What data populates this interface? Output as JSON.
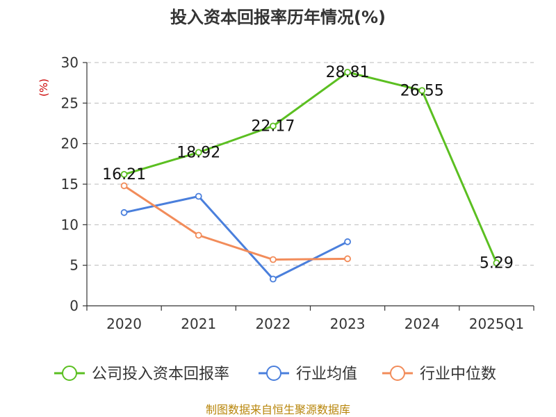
{
  "chart_data": {
    "type": "line",
    "title": "投入资本回报率历年情况(%)",
    "ylabel": "(%)",
    "xlabel": "",
    "categories": [
      "2020",
      "2021",
      "2022",
      "2023",
      "2024",
      "2025Q1"
    ],
    "ylim": [
      0,
      30
    ],
    "yticks": [
      0,
      5,
      10,
      15,
      20,
      25,
      30
    ],
    "grid": true,
    "legend_position": "bottom",
    "series": [
      {
        "name": "公司投入资本回报率",
        "color": "#5bbf21",
        "values": [
          16.21,
          18.92,
          22.17,
          28.81,
          26.55,
          5.29
        ],
        "data_labels": [
          "16.21",
          "18.92",
          "22.17",
          "28.81",
          "26.55",
          "5.29"
        ]
      },
      {
        "name": "行业均值",
        "color": "#4a7fdc",
        "values": [
          11.5,
          13.5,
          3.3,
          7.9,
          null,
          null
        ]
      },
      {
        "name": "行业中位数",
        "color": "#f28c5a",
        "values": [
          14.8,
          8.7,
          5.7,
          5.8,
          null,
          null
        ]
      }
    ]
  },
  "source_text": "制图数据来自恒生聚源数据库"
}
